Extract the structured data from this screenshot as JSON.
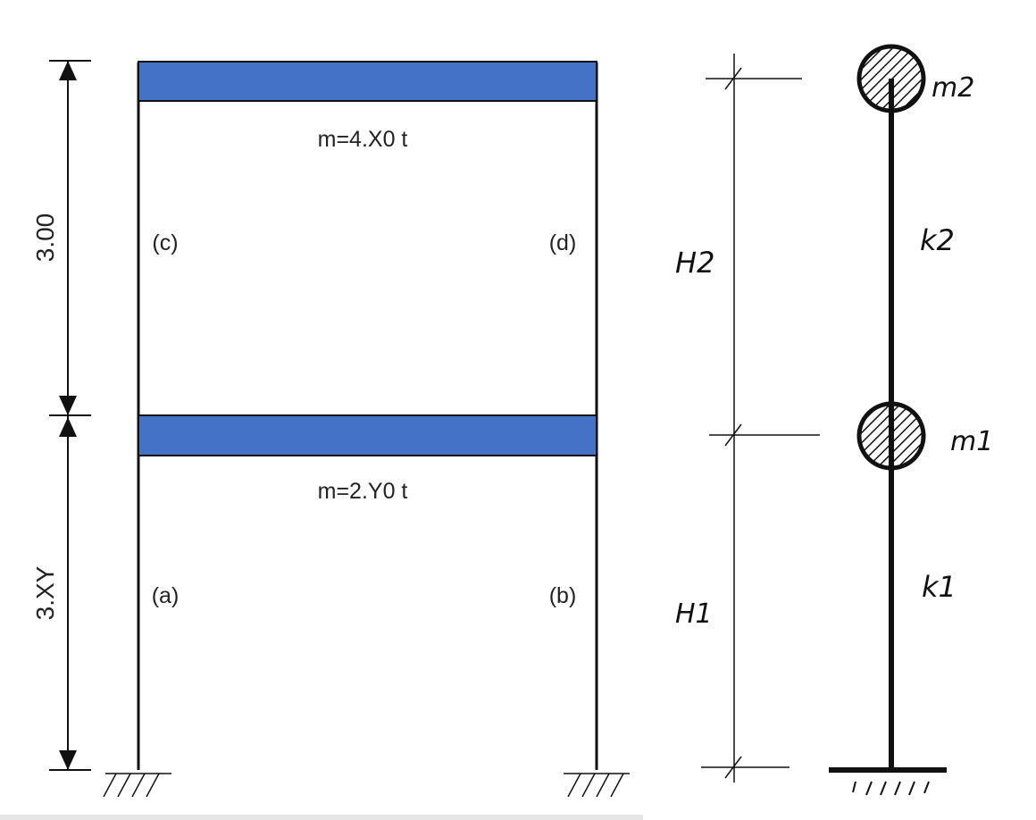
{
  "frame": {
    "top_mass_label": "m=4.X0 t",
    "bottom_mass_label": "m=2.Y0 t",
    "upper_story_height": "3.00",
    "lower_story_height": "3.XY",
    "column_labels": {
      "a": "(a)",
      "b": "(b)",
      "c": "(c)",
      "d": "(d)"
    },
    "beam_color": "#4472c4"
  },
  "model": {
    "mass_top": "m2",
    "mass_bottom": "m1",
    "stiffness_top": "k2",
    "stiffness_bottom": "k1",
    "height_top": "H2",
    "height_bottom": "H1"
  }
}
